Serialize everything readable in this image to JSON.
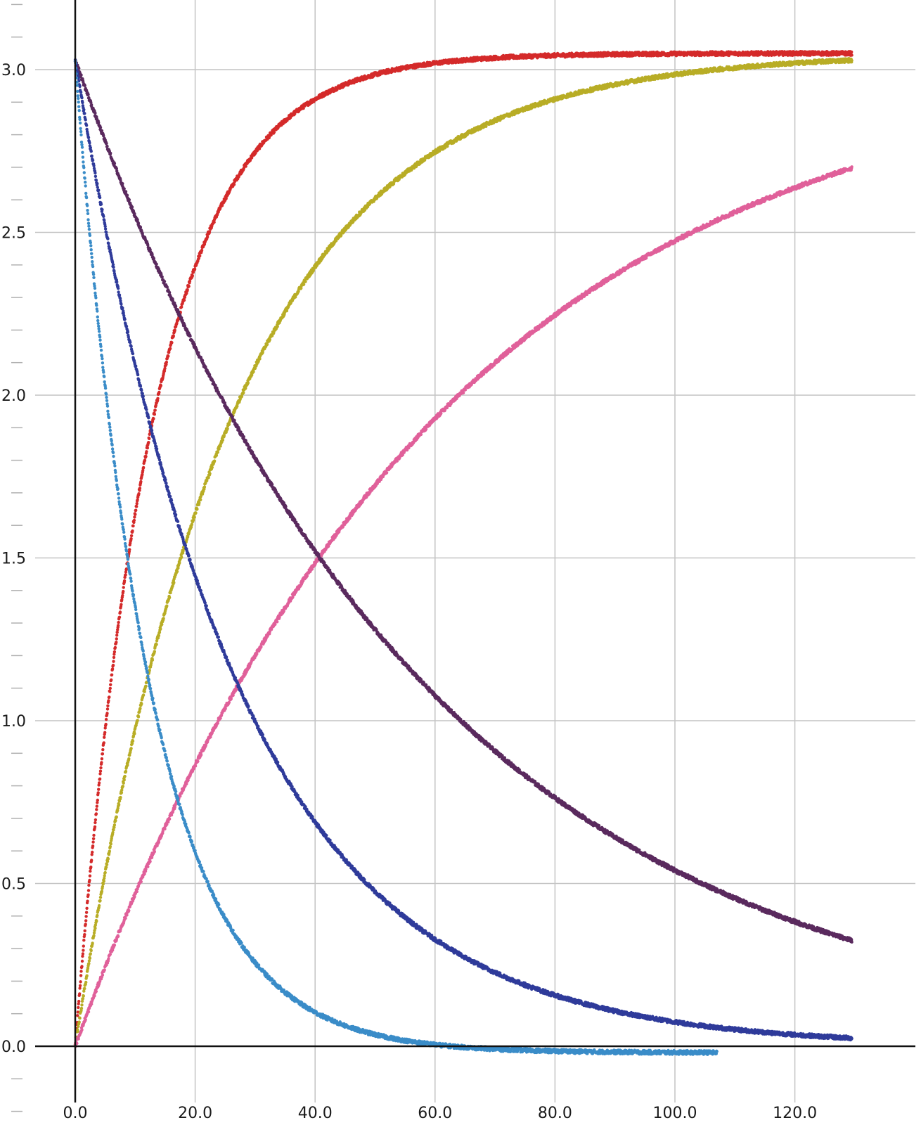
{
  "chart_data": {
    "type": "scatter",
    "title": "",
    "xlabel": "",
    "ylabel": "",
    "xlim": [
      -4,
      135
    ],
    "ylim": [
      -0.2,
      3.2
    ],
    "grid": true,
    "x_ticks": [
      0,
      20,
      40,
      60,
      80,
      100,
      120
    ],
    "x_tick_labels": [
      "0.0",
      "20.0",
      "40.0",
      "60.0",
      "80.0",
      "100.0",
      "120.0"
    ],
    "y_ticks": [
      0,
      0.5,
      1,
      1.5,
      2,
      2.5,
      3
    ],
    "y_tick_labels": [
      "0.0",
      "0.5",
      "1.0",
      "1.5",
      "2.0",
      "2.5",
      "3.0"
    ],
    "y_minor_step": 0.1,
    "series": [
      {
        "color": "#d42a2a",
        "kind": "rise",
        "start": 0.0,
        "end": 3.05,
        "tau": 13,
        "x_end": 129.5,
        "samples": [
          {
            "x": 0,
            "y": 0.0
          },
          {
            "x": 10,
            "y": 1.65
          },
          {
            "x": 20,
            "y": 2.45
          },
          {
            "x": 40,
            "y": 2.92
          },
          {
            "x": 60,
            "y": 3.02
          },
          {
            "x": 129.5,
            "y": 3.05
          }
        ]
      },
      {
        "color": "#b8ad26",
        "kind": "rise",
        "start": 0.0,
        "end": 3.05,
        "tau": 26,
        "x_end": 129.5,
        "samples": [
          {
            "x": 0,
            "y": 0.0
          },
          {
            "x": 20,
            "y": 1.5
          },
          {
            "x": 40,
            "y": 2.33
          },
          {
            "x": 60,
            "y": 2.7
          },
          {
            "x": 80,
            "y": 2.88
          },
          {
            "x": 129.5,
            "y": 3.02
          }
        ]
      },
      {
        "color": "#e0609a",
        "kind": "rise",
        "start": 0.0,
        "end": 3.05,
        "tau": 60,
        "x_end": 129.5,
        "samples": [
          {
            "x": 0,
            "y": 0.0
          },
          {
            "x": 20,
            "y": 0.88
          },
          {
            "x": 40,
            "y": 1.5
          },
          {
            "x": 60,
            "y": 1.96
          },
          {
            "x": 80,
            "y": 2.27
          },
          {
            "x": 100,
            "y": 2.49
          },
          {
            "x": 129.5,
            "y": 2.68
          }
        ]
      },
      {
        "color": "#5a2a5e",
        "kind": "decay",
        "start": 3.03,
        "end": 0.0,
        "tau": 58,
        "x_end": 129.5,
        "samples": [
          {
            "x": 0,
            "y": 3.03
          },
          {
            "x": 20,
            "y": 2.16
          },
          {
            "x": 40,
            "y": 1.53
          },
          {
            "x": 60,
            "y": 1.1
          },
          {
            "x": 80,
            "y": 0.77
          },
          {
            "x": 100,
            "y": 0.56
          },
          {
            "x": 129.5,
            "y": 0.33
          }
        ]
      },
      {
        "color": "#2f3b9a",
        "kind": "decay",
        "start": 3.03,
        "end": 0.0,
        "tau": 27,
        "x_end": 129.5,
        "samples": [
          {
            "x": 0,
            "y": 3.03
          },
          {
            "x": 20,
            "y": 1.45
          },
          {
            "x": 40,
            "y": 0.7
          },
          {
            "x": 60,
            "y": 0.34
          },
          {
            "x": 80,
            "y": 0.16
          },
          {
            "x": 100,
            "y": 0.07
          },
          {
            "x": 129.5,
            "y": 0.02
          }
        ]
      },
      {
        "color": "#3a8cc8",
        "kind": "decay",
        "start": 3.03,
        "end": -0.02,
        "tau": 12.5,
        "x_end": 107,
        "samples": [
          {
            "x": 0,
            "y": 3.03
          },
          {
            "x": 10,
            "y": 1.38
          },
          {
            "x": 20,
            "y": 0.6
          },
          {
            "x": 40,
            "y": 0.12
          },
          {
            "x": 60,
            "y": 0.02
          },
          {
            "x": 107,
            "y": -0.02
          }
        ]
      }
    ]
  }
}
